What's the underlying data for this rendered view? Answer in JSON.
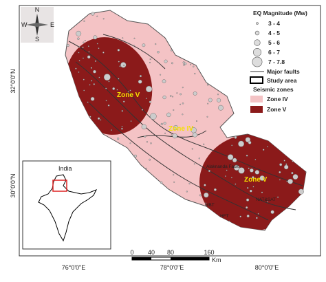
{
  "compass": {
    "north": "N",
    "east": "E",
    "south": "S",
    "west": "W"
  },
  "legend": {
    "title": "EQ Magnitude (Mw)",
    "magnitudes": [
      "3 - 4",
      "4 - 5",
      "5 - 6",
      "6 - 7",
      "7 - 7.8"
    ],
    "major_faults": "Major faults",
    "study_area": "Study area",
    "seismic_zones": "Seismic zones",
    "zones": [
      "Zone IV",
      "Zone V"
    ]
  },
  "map_labels": {
    "zone_v_west": "Zone V",
    "zone_iv": "Zone IV",
    "zone_v_east": "Zone V",
    "faults": [
      "MBT",
      "NAT&SAT",
      "HFT",
      "Alaknanda Fault"
    ]
  },
  "axes": {
    "latitudes": [
      "32°0'0\"N",
      "30°0'0\"N"
    ],
    "longitudes": [
      "76°0'0\"E",
      "78°0'0\"E",
      "80°0'0\"E"
    ]
  },
  "inset": {
    "title": "India"
  },
  "scale_bar": {
    "ticks": [
      "0",
      "40",
      "80",
      "160"
    ],
    "unit": "Km"
  }
}
